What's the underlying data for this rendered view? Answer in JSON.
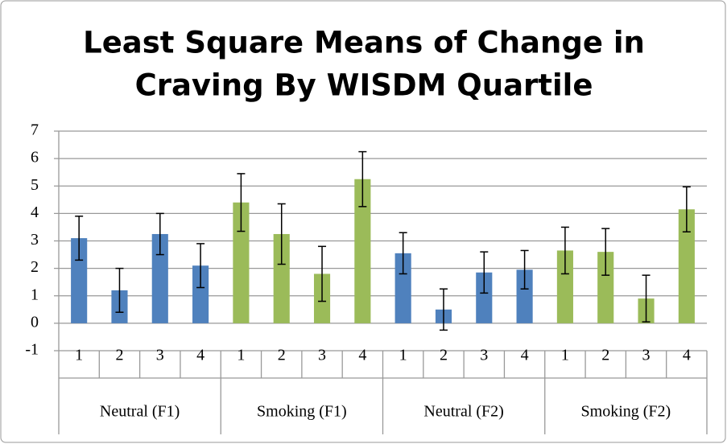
{
  "chart_data": {
    "type": "bar",
    "title": [
      "Least Square Means of Change in",
      "Craving By WISDM Quartile"
    ],
    "groups": [
      {
        "name": "Neutral (F1)",
        "color": "#4f81bd",
        "categories": [
          "1",
          "2",
          "3",
          "4"
        ],
        "values": [
          3.1,
          1.2,
          3.25,
          2.1
        ],
        "errors": [
          0.8,
          0.8,
          0.75,
          0.8
        ]
      },
      {
        "name": "Smoking (F1)",
        "color": "#9bbb59",
        "categories": [
          "1",
          "2",
          "3",
          "4"
        ],
        "values": [
          4.4,
          3.25,
          1.8,
          5.25
        ],
        "errors": [
          1.05,
          1.1,
          1.0,
          1.0
        ]
      },
      {
        "name": "Neutral (F2)",
        "color": "#4f81bd",
        "categories": [
          "1",
          "2",
          "3",
          "4"
        ],
        "values": [
          2.55,
          0.5,
          1.85,
          1.95
        ],
        "errors": [
          0.75,
          0.75,
          0.75,
          0.7
        ]
      },
      {
        "name": "Smoking (F2)",
        "color": "#9bbb59",
        "categories": [
          "1",
          "2",
          "3",
          "4"
        ],
        "values": [
          2.65,
          2.6,
          0.9,
          4.15
        ],
        "errors": [
          0.85,
          0.85,
          0.85,
          0.82
        ]
      }
    ],
    "ylim": [
      -1,
      7
    ],
    "yticks": [
      -1,
      0,
      1,
      2,
      3,
      4,
      5,
      6,
      7
    ],
    "grid": true
  }
}
